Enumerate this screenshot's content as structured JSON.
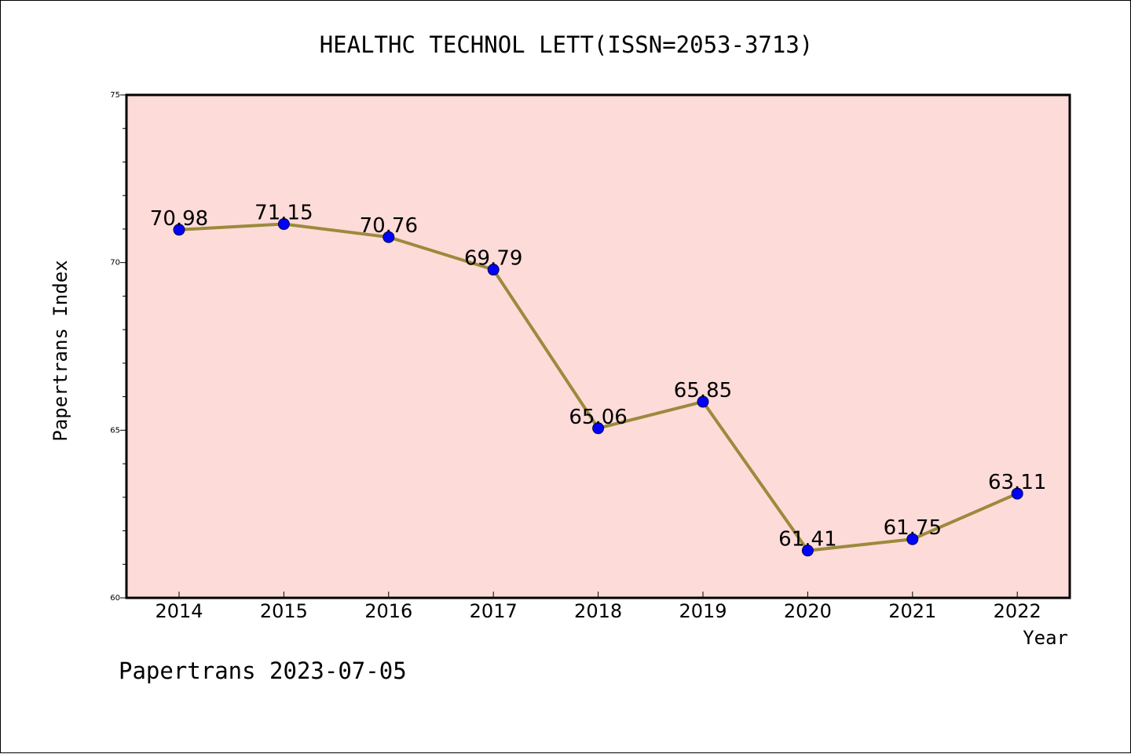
{
  "footer_text": "Papertrans 2023-07-05",
  "colors": {
    "plot_background": "#fddbd8",
    "line": "#9b8a3c",
    "marker": "#0000ff"
  },
  "chart_data": {
    "type": "line",
    "title": "HEALTHC TECHNOL LETT(ISSN=2053-3713)",
    "xlabel": "Year",
    "ylabel": "Papertrans Index",
    "categories": [
      "2014",
      "2015",
      "2016",
      "2017",
      "2018",
      "2019",
      "2020",
      "2021",
      "2022"
    ],
    "series": [
      {
        "values": [
          70.98,
          71.15,
          70.76,
          69.79,
          65.06,
          65.85,
          61.41,
          61.75,
          63.11
        ],
        "labels": [
          "70.98",
          "71.15",
          "70.76",
          "69.79",
          "65.06",
          "65.85",
          "61.41",
          "61.75",
          "63.11"
        ]
      }
    ],
    "ylim": [
      60,
      75
    ],
    "yticks": [
      "60",
      "65",
      "70",
      "75"
    ],
    "grid": false,
    "legend": "none"
  }
}
